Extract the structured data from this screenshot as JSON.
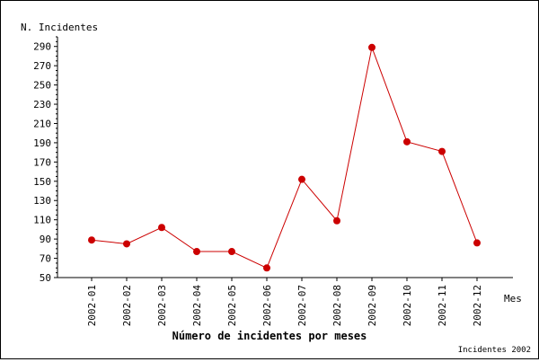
{
  "chart_data": {
    "type": "line",
    "title": "Número de incidentes por meses",
    "xlabel": "Mes",
    "ylabel": "N. Incidentes",
    "footer": "Incidentes 2002",
    "categories": [
      "2002-01",
      "2002-02",
      "2002-03",
      "2002-04",
      "2002-05",
      "2002-06",
      "2002-07",
      "2002-08",
      "2002-09",
      "2002-10",
      "2002-11",
      "2002-12"
    ],
    "series": [
      {
        "values": [
          89,
          85,
          102,
          77,
          77,
          60,
          152,
          109,
          289,
          191,
          181,
          86
        ]
      }
    ],
    "yticks": [
      50,
      70,
      90,
      110,
      130,
      150,
      170,
      190,
      210,
      230,
      250,
      270,
      290
    ],
    "ylim": [
      50,
      300
    ],
    "grid": false,
    "legend": "none",
    "colors": {
      "line": "#cc0000",
      "marker": "#cc0000",
      "axis": "#000000"
    }
  }
}
